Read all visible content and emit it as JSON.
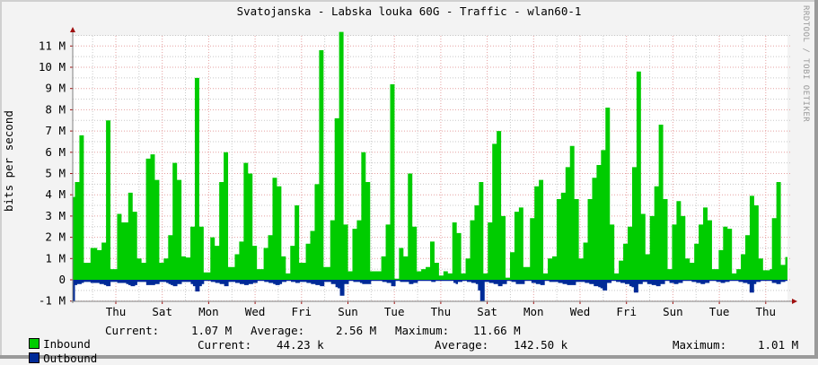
{
  "title": "Svatojanska - Labska louka 60G - Traffic - wlan60-1",
  "watermark": "RRDTOOL / TOBI OETIKER",
  "colors": {
    "background": "#f3f3f3",
    "plot_background": "#ffffff",
    "inbound": "#00cc00",
    "outbound": "#002a97",
    "major_grid": "#e5a0a0",
    "minor_grid": "#c8c8c8",
    "axis": "#808080",
    "arrow": "#a01010"
  },
  "legend": {
    "inbound": {
      "label": "Inbound",
      "current_label": "Current:",
      "current": "1.07 M",
      "average_label": "Average:",
      "average": "2.56 M",
      "maximum_label": "Maximum:",
      "maximum": "11.66 M"
    },
    "outbound": {
      "label": "Outbound",
      "current_label": "Current:",
      "current": "44.23 k",
      "average_label": "Average:",
      "average": "142.50 k",
      "maximum_label": "Maximum:",
      "maximum": "1.01 M"
    }
  },
  "chart_data": {
    "type": "area",
    "title": "Svatojanska - Labska louka 60G - Traffic - wlan60-1",
    "xlabel": "",
    "ylabel": "bits per second",
    "ylim": [
      -1.0,
      11.8
    ],
    "y_unit": "M",
    "yticks": [
      "-1 M",
      "0",
      "1 M",
      "2 M",
      "3 M",
      "4 M",
      "5 M",
      "6 M",
      "7 M",
      "8 M",
      "9 M",
      "10 M",
      "11 M"
    ],
    "x_tick_labels": [
      "Thu",
      "Sat",
      "Mon",
      "Wed",
      "Fri",
      "Sun",
      "Tue",
      "Thu",
      "Sat",
      "Mon",
      "Wed",
      "Fri",
      "Sun",
      "Tue",
      "Thu"
    ],
    "grid": true,
    "legend_position": "bottom",
    "series": [
      {
        "name": "Inbound",
        "color": "#00cc00",
        "values_M": [
          3.9,
          4.6,
          4.6,
          6.8,
          6.8,
          0.8,
          0.8,
          0.8,
          1.5,
          1.5,
          1.5,
          1.4,
          1.4,
          1.75,
          1.75,
          7.5,
          7.5,
          0.5,
          0.5,
          0.5,
          3.1,
          3.1,
          2.7,
          2.7,
          2.7,
          4.1,
          4.1,
          3.2,
          3.2,
          1.0,
          1.0,
          0.8,
          0.8,
          5.7,
          5.7,
          5.9,
          5.9,
          4.7,
          4.7,
          0.8,
          0.8,
          1.0,
          1.0,
          2.1,
          2.1,
          5.5,
          5.5,
          4.7,
          4.7,
          1.1,
          1.1,
          1.05,
          1.05,
          2.5,
          2.5,
          9.5,
          9.5,
          2.5,
          2.5,
          0.35,
          0.35,
          0.35,
          2.0,
          2.0,
          1.6,
          1.6,
          4.6,
          4.6,
          6.0,
          6.0,
          0.6,
          0.6,
          0.6,
          1.2,
          1.2,
          1.8,
          1.8,
          5.5,
          5.5,
          5.0,
          5.0,
          1.6,
          1.6,
          0.5,
          0.5,
          0.5,
          1.5,
          1.5,
          2.1,
          2.1,
          4.8,
          4.8,
          4.4,
          4.4,
          1.1,
          1.1,
          0.3,
          0.3,
          1.6,
          1.6,
          3.5,
          3.5,
          0.8,
          0.8,
          0.8,
          1.7,
          1.7,
          2.3,
          2.3,
          4.5,
          4.5,
          10.8,
          10.8,
          0.6,
          0.6,
          0.6,
          2.8,
          2.8,
          7.6,
          7.6,
          11.66,
          11.66,
          2.6,
          2.6,
          0.4,
          0.4,
          2.4,
          2.4,
          2.8,
          2.8,
          6.0,
          6.0,
          4.6,
          4.6,
          0.4,
          0.4,
          0.4,
          0.4,
          0.4,
          1.1,
          1.1,
          2.6,
          2.6,
          9.2,
          9.2,
          0.05,
          0.05,
          1.5,
          1.5,
          1.1,
          1.1,
          5.0,
          5.0,
          2.5,
          2.5,
          0.4,
          0.4,
          0.5,
          0.5,
          0.6,
          0.6,
          1.8,
          1.8,
          0.8,
          0.8,
          0.2,
          0.2,
          0.4,
          0.4,
          0.3,
          0.3,
          2.7,
          2.7,
          2.2,
          2.2,
          0.3,
          0.3,
          1.0,
          1.0,
          2.8,
          2.8,
          3.5,
          3.5,
          4.6,
          4.6,
          0.3,
          0.3,
          2.7,
          2.7,
          6.4,
          6.4,
          7.0,
          7.0,
          3.0,
          3.0,
          0.1,
          0.1,
          1.3,
          1.3,
          3.2,
          3.2,
          3.4,
          3.4,
          0.6,
          0.6,
          0.6,
          2.9,
          2.9,
          4.4,
          4.4,
          4.7,
          4.7,
          0.3,
          0.3,
          1.0,
          1.0,
          1.1,
          1.1,
          3.8,
          3.8,
          4.1,
          4.1,
          5.3,
          5.3,
          6.3,
          6.3,
          3.8,
          3.8,
          1.0,
          1.0,
          1.75,
          1.75,
          3.8,
          3.8,
          4.8,
          4.8,
          5.4,
          5.4,
          6.1,
          6.1,
          8.1,
          8.1,
          2.6,
          2.6,
          0.3,
          0.3,
          0.9,
          0.9,
          1.7,
          1.7,
          2.5,
          2.5,
          5.3,
          5.3,
          9.8,
          9.8,
          3.1,
          3.1,
          1.2,
          1.2,
          3.0,
          3.0,
          4.4,
          4.4,
          7.3,
          7.3,
          3.8,
          3.8,
          0.5,
          0.5,
          2.6,
          2.6,
          3.7,
          3.7,
          3.0,
          3.0,
          1.0,
          1.0,
          0.8,
          0.8,
          1.7,
          1.7,
          2.6,
          2.6,
          3.4,
          3.4,
          2.8,
          2.8,
          0.5,
          0.5,
          0.5,
          1.4,
          1.4,
          2.5,
          2.5,
          2.4,
          2.4,
          0.3,
          0.3,
          0.5,
          0.5,
          1.2,
          1.2,
          2.1,
          2.1,
          3.95,
          3.95,
          3.5,
          3.5,
          1.0,
          1.0,
          0.45,
          0.45,
          0.45,
          0.5,
          2.9,
          2.9,
          4.6,
          4.6,
          0.7,
          0.7,
          1.07
        ]
      },
      {
        "name": "Outbound",
        "color": "#002a97",
        "values_M": [
          -1.01,
          -0.25,
          -0.2,
          -0.2,
          -0.15,
          -0.1,
          -0.1,
          -0.1,
          -0.15,
          -0.15,
          -0.15,
          -0.15,
          -0.2,
          -0.2,
          -0.25,
          -0.3,
          -0.3,
          -0.1,
          -0.1,
          -0.1,
          -0.15,
          -0.15,
          -0.15,
          -0.15,
          -0.2,
          -0.25,
          -0.3,
          -0.3,
          -0.25,
          -0.1,
          -0.1,
          -0.1,
          -0.1,
          -0.25,
          -0.25,
          -0.25,
          -0.25,
          -0.2,
          -0.2,
          -0.1,
          -0.1,
          -0.1,
          -0.15,
          -0.2,
          -0.25,
          -0.3,
          -0.3,
          -0.2,
          -0.2,
          -0.1,
          -0.1,
          -0.1,
          -0.1,
          -0.2,
          -0.3,
          -0.55,
          -0.55,
          -0.3,
          -0.2,
          -0.05,
          -0.05,
          -0.05,
          -0.1,
          -0.1,
          -0.15,
          -0.15,
          -0.2,
          -0.2,
          -0.3,
          -0.3,
          -0.1,
          -0.1,
          -0.1,
          -0.15,
          -0.15,
          -0.2,
          -0.2,
          -0.25,
          -0.25,
          -0.2,
          -0.2,
          -0.15,
          -0.15,
          -0.05,
          -0.05,
          -0.05,
          -0.1,
          -0.1,
          -0.15,
          -0.15,
          -0.2,
          -0.25,
          -0.25,
          -0.2,
          -0.1,
          -0.1,
          -0.05,
          -0.05,
          -0.1,
          -0.1,
          -0.15,
          -0.15,
          -0.1,
          -0.1,
          -0.1,
          -0.15,
          -0.15,
          -0.2,
          -0.2,
          -0.25,
          -0.25,
          -0.3,
          -0.3,
          -0.1,
          -0.1,
          -0.1,
          -0.2,
          -0.2,
          -0.35,
          -0.4,
          -0.75,
          -0.75,
          -0.2,
          -0.2,
          -0.05,
          -0.05,
          -0.1,
          -0.1,
          -0.1,
          -0.15,
          -0.2,
          -0.2,
          -0.2,
          -0.2,
          -0.05,
          -0.05,
          -0.05,
          -0.05,
          -0.05,
          -0.1,
          -0.1,
          -0.15,
          -0.15,
          -0.3,
          -0.3,
          -0.05,
          -0.05,
          -0.1,
          -0.1,
          -0.1,
          -0.1,
          -0.2,
          -0.2,
          -0.15,
          -0.15,
          -0.05,
          -0.05,
          -0.05,
          -0.05,
          -0.05,
          -0.05,
          -0.1,
          -0.1,
          -0.05,
          -0.05,
          -0.05,
          -0.05,
          -0.05,
          -0.05,
          -0.05,
          -0.05,
          -0.15,
          -0.2,
          -0.1,
          -0.1,
          -0.05,
          -0.05,
          -0.1,
          -0.1,
          -0.15,
          -0.15,
          -0.2,
          -0.5,
          -1.01,
          -1.0,
          -0.1,
          -0.1,
          -0.15,
          -0.15,
          -0.2,
          -0.2,
          -0.3,
          -0.3,
          -0.2,
          -0.2,
          -0.05,
          -0.05,
          -0.1,
          -0.1,
          -0.2,
          -0.2,
          -0.2,
          -0.2,
          -0.05,
          -0.05,
          -0.05,
          -0.15,
          -0.15,
          -0.2,
          -0.2,
          -0.25,
          -0.25,
          -0.05,
          -0.05,
          -0.1,
          -0.1,
          -0.1,
          -0.1,
          -0.15,
          -0.15,
          -0.2,
          -0.2,
          -0.25,
          -0.25,
          -0.25,
          -0.25,
          -0.1,
          -0.1,
          -0.1,
          -0.1,
          -0.15,
          -0.15,
          -0.2,
          -0.2,
          -0.3,
          -0.3,
          -0.35,
          -0.4,
          -0.5,
          -0.5,
          -0.15,
          -0.15,
          -0.05,
          -0.05,
          -0.1,
          -0.1,
          -0.15,
          -0.15,
          -0.2,
          -0.2,
          -0.3,
          -0.35,
          -0.6,
          -0.6,
          -0.2,
          -0.2,
          -0.1,
          -0.1,
          -0.2,
          -0.2,
          -0.25,
          -0.25,
          -0.3,
          -0.3,
          -0.2,
          -0.2,
          -0.05,
          -0.05,
          -0.15,
          -0.15,
          -0.2,
          -0.2,
          -0.15,
          -0.15,
          -0.05,
          -0.05,
          -0.05,
          -0.05,
          -0.1,
          -0.1,
          -0.15,
          -0.15,
          -0.2,
          -0.2,
          -0.15,
          -0.15,
          -0.05,
          -0.05,
          -0.05,
          -0.1,
          -0.1,
          -0.15,
          -0.15,
          -0.1,
          -0.1,
          -0.05,
          -0.05,
          -0.05,
          -0.05,
          -0.1,
          -0.1,
          -0.15,
          -0.15,
          -0.2,
          -0.6,
          -0.6,
          -0.2,
          -0.1,
          -0.1,
          -0.05,
          -0.05,
          -0.05,
          -0.05,
          -0.05,
          -0.15,
          -0.15,
          -0.2,
          -0.2,
          -0.1,
          -0.1,
          -0.05
        ]
      }
    ]
  }
}
